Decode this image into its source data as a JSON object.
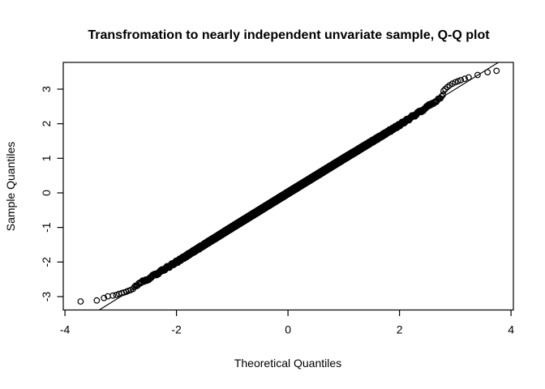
{
  "figure": {
    "background_color": "#ffffff",
    "foreground_color": "#000000"
  },
  "chart_data": {
    "type": "scatter",
    "subtype": "qq-plot-normal",
    "title": "Transfromation to nearly independent unvariate sample, Q-Q plot",
    "xlabel": "Theoretical Quantiles",
    "ylabel": "Sample Quantiles",
    "x_ticks": [
      -4,
      -2,
      0,
      2,
      4
    ],
    "y_ticks": [
      -3,
      -2,
      -1,
      0,
      1,
      2,
      3
    ],
    "xlim": [
      -4.03,
      4.04
    ],
    "ylim": [
      -3.38,
      3.77
    ],
    "grid": false,
    "legend": null,
    "point_color": "#000000",
    "marker": {
      "shape": "open-circle",
      "radius_px": 3.3,
      "stroke_px": 1.2
    },
    "n_points": 5000,
    "reference_line": {
      "slope": 1,
      "intercept": 0,
      "color": "#000000"
    },
    "body_x_range": [
      -2.78,
      2.78
    ],
    "body_deviation_control_points": [
      [
        -2.78,
        0.045
      ],
      [
        -2.5,
        0.02
      ],
      [
        -2.0,
        0.0
      ],
      [
        -1.0,
        0.005
      ],
      [
        0.0,
        0.0
      ],
      [
        1.0,
        -0.01
      ],
      [
        2.0,
        -0.035
      ],
      [
        2.4,
        -0.02
      ],
      [
        2.78,
        0.02
      ]
    ],
    "left_tail_points": [
      [
        -3.72,
        -3.14
      ],
      [
        -3.43,
        -3.11
      ],
      [
        -3.3,
        -3.04
      ],
      [
        -3.23,
        -2.99
      ],
      [
        -3.14,
        -2.97
      ],
      [
        -3.08,
        -2.95
      ],
      [
        -3.03,
        -2.92
      ],
      [
        -2.98,
        -2.9
      ],
      [
        -2.94,
        -2.88
      ],
      [
        -2.9,
        -2.86
      ],
      [
        -2.86,
        -2.83
      ],
      [
        -2.82,
        -2.81
      ]
    ],
    "right_tail_points": [
      [
        2.79,
        2.95
      ],
      [
        2.82,
        3.0
      ],
      [
        2.86,
        3.06
      ],
      [
        2.9,
        3.11
      ],
      [
        2.95,
        3.16
      ],
      [
        3.0,
        3.2
      ],
      [
        3.05,
        3.23
      ],
      [
        3.1,
        3.26
      ],
      [
        3.17,
        3.3
      ],
      [
        3.24,
        3.34
      ],
      [
        3.4,
        3.41
      ],
      [
        3.58,
        3.49
      ],
      [
        3.74,
        3.53
      ]
    ]
  }
}
